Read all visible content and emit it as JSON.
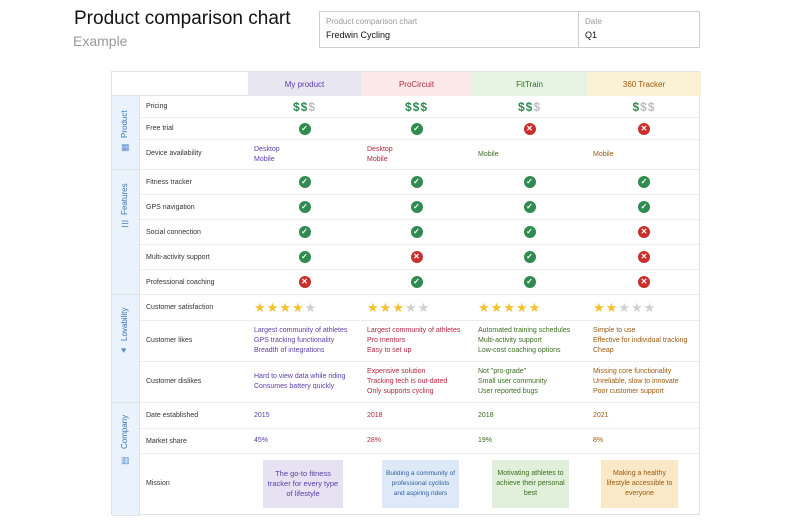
{
  "header": {
    "title": "Product comparison chart",
    "subtitle": "Example"
  },
  "meta": {
    "chart_label": "Product comparison chart",
    "chart_value": "Fredwin Cycling",
    "date_label": "Date",
    "date_value": "Q1"
  },
  "columns": [
    "My product",
    "ProCircuit",
    "FitTrain",
    "360 Tracker"
  ],
  "colors": {
    "my_product": "#5b3ea8",
    "procircuit": "#b0293e",
    "fittrain": "#3b6e22",
    "tracker_360": "#9a5a10",
    "check": "#2f8b4f",
    "cross": "#c9302c",
    "star": "#f2c12e"
  },
  "sections": [
    {
      "label": "Product",
      "icon": "trash-icon"
    },
    {
      "label": "Features",
      "icon": "list-icon"
    },
    {
      "label": "Lovability",
      "icon": "heart-icon"
    },
    {
      "label": "Company",
      "icon": "building-icon"
    }
  ],
  "rows": {
    "pricing": {
      "label": "Pricing",
      "values": [
        2,
        3,
        2,
        1
      ],
      "max": 3
    },
    "free_trial": {
      "label": "Free trial",
      "values": [
        true,
        true,
        false,
        false
      ]
    },
    "device_availability": {
      "label": "Device availability",
      "values": [
        [
          "Desktop",
          "Mobile"
        ],
        [
          "Desktop",
          "Mobile"
        ],
        [
          "Mobile"
        ],
        [
          "Mobile"
        ]
      ]
    },
    "fitness_tracker": {
      "label": "Fitness tracker",
      "values": [
        true,
        true,
        true,
        true
      ]
    },
    "gps_navigation": {
      "label": "GPS navigation",
      "values": [
        true,
        true,
        true,
        true
      ]
    },
    "social_connection": {
      "label": "Social connection",
      "values": [
        true,
        true,
        true,
        false
      ]
    },
    "multi_activity": {
      "label": "Multi-activity support",
      "values": [
        true,
        false,
        true,
        false
      ]
    },
    "professional_coaching": {
      "label": "Professional coaching",
      "values": [
        false,
        true,
        true,
        false
      ]
    },
    "customer_satisfaction": {
      "label": "Customer satisfaction",
      "values": [
        4,
        3,
        5,
        2
      ],
      "max": 5
    },
    "customer_likes": {
      "label": "Customer likes",
      "values": [
        [
          "Largest community of athletes",
          "GPS tracking functionality",
          "Breadth of integrations"
        ],
        [
          "Largest community of athletes",
          "Pro mentors",
          "Easy to set up"
        ],
        [
          "Automated training schedules",
          "Multi-activity support",
          "Low-cost coaching options"
        ],
        [
          "Simple to use",
          "Effective for individual tracking",
          "Cheap"
        ]
      ]
    },
    "customer_dislikes": {
      "label": "Customer dislikes",
      "values": [
        [
          "Hard to view data while riding",
          "Consumes battery quickly"
        ],
        [
          "Expensive solution",
          "Tracking tech is out-dated",
          "Only supports cycling"
        ],
        [
          "Not \"pro-grade\"",
          "Small user community",
          "User reported bugs"
        ],
        [
          "Missing core functionality",
          "Unreliable, slow to innovate",
          "Poor customer support"
        ]
      ]
    },
    "date_established": {
      "label": "Date established",
      "values": [
        "2015",
        "2018",
        "2018",
        "2021"
      ]
    },
    "market_share": {
      "label": "Market share",
      "values": [
        "45%",
        "28%",
        "19%",
        "8%"
      ]
    },
    "mission": {
      "label": "Mission",
      "values": [
        "The go-to fitness tracker for every type of lifestyle",
        "Building a community of professional cyclists and aspiring riders",
        "Motivating athletes to achieve their personal best",
        "Making a healthy lifestyle accessible to everyone"
      ]
    }
  }
}
